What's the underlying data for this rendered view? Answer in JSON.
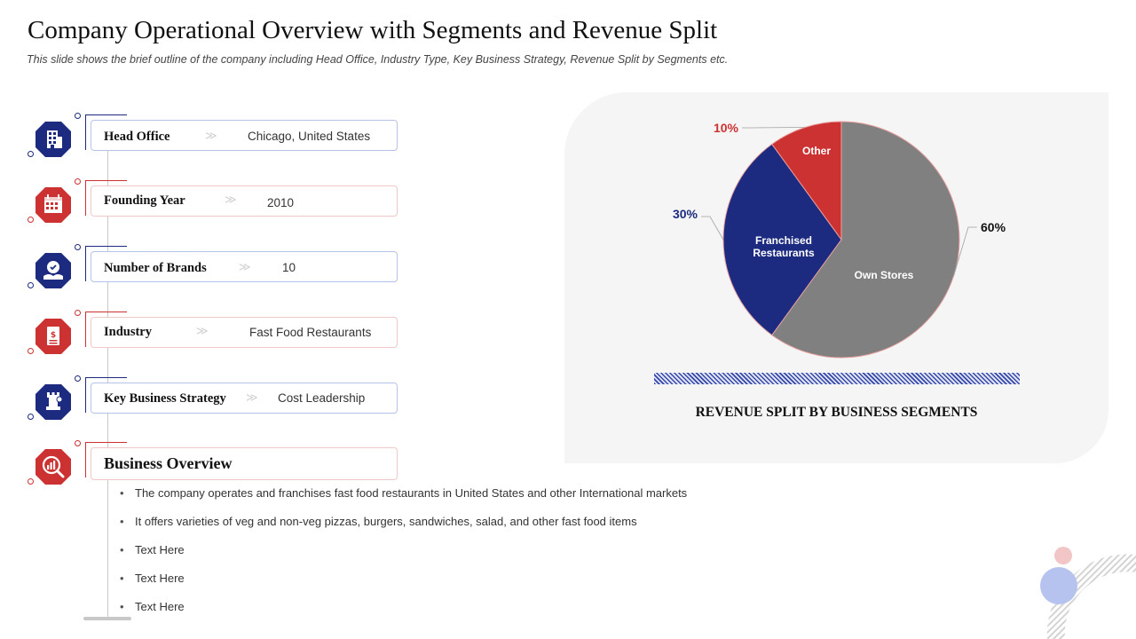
{
  "title": "Company Operational Overview with Segments and Revenue Split",
  "subtitle": "This slide shows the brief outline of the company including Head Office, Industry Type, Key Business Strategy, Revenue  Split by Segments etc.",
  "colors": {
    "blue": "#1c2b7f",
    "red": "#cd3232",
    "gray": "#808080",
    "card_blue_border": "#b7c2e8",
    "card_red_border": "#f0c8c8"
  },
  "items": [
    {
      "label": "Head Office",
      "value": "Chicago, United States",
      "icon": "building-icon",
      "color": "blue"
    },
    {
      "label": "Founding Year",
      "value": "2010",
      "icon": "calendar-icon",
      "color": "red"
    },
    {
      "label": "Number of Brands",
      "value": "10",
      "icon": "brand-hand-icon",
      "color": "blue"
    },
    {
      "label": "Industry",
      "value": "Fast Food Restaurants",
      "icon": "document-dollar-icon",
      "color": "red"
    },
    {
      "label": "Key Business Strategy",
      "value": "Cost Leadership",
      "icon": "chess-strategy-icon",
      "color": "blue"
    }
  ],
  "business_overview": {
    "title": "Business Overview",
    "icon": "analytics-magnifier-icon",
    "bullets": [
      "The company operates and franchises fast food restaurants in United States and other International markets",
      "It offers varieties of veg and non-veg  pizzas, burgers, sandwiches, salad, and other fast food items",
      "Text Here",
      "Text Here",
      "Text Here"
    ]
  },
  "chart_data": {
    "type": "pie",
    "title": "REVENUE SPLIT BY BUSINESS SEGMENTS",
    "slices": [
      {
        "name": "Own Stores",
        "value": 60,
        "label": "60%",
        "color": "#808080"
      },
      {
        "name": "Franchised Restaurants",
        "value": 30,
        "label": "30%",
        "color": "#1c2b7f"
      },
      {
        "name": "Other",
        "value": 10,
        "label": "10%",
        "color": "#cd3232"
      }
    ],
    "start": "12 o'clock, clockwise"
  }
}
